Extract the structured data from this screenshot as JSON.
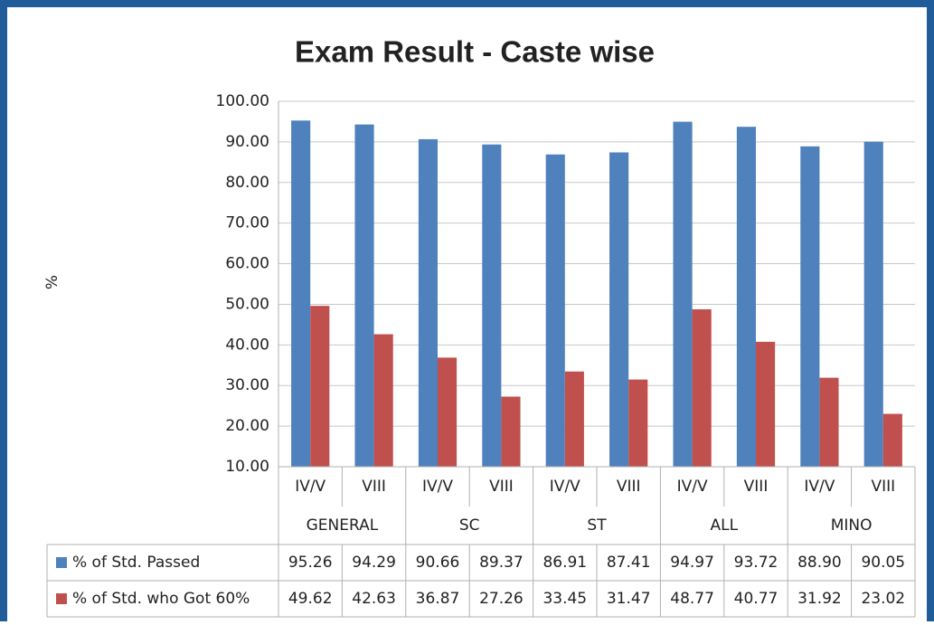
{
  "chart_data": {
    "type": "bar",
    "title": "Exam Result - Caste wise",
    "y_label": "%",
    "categories": [
      "IV/V",
      "VIII",
      "IV/V",
      "VIII",
      "IV/V",
      "VIII",
      "IV/V",
      "VIII",
      "IV/V",
      "VIII"
    ],
    "groups": [
      "GENERAL",
      "SC",
      "ST",
      "ALL",
      "MINO"
    ],
    "series": [
      {
        "name": "% of Std. Passed",
        "color": "#4f81bd",
        "values": [
          95.26,
          94.29,
          90.66,
          89.37,
          86.91,
          87.41,
          94.97,
          93.72,
          88.9,
          90.05
        ],
        "value_labels": [
          "95.26",
          "94.29",
          "90.66",
          "89.37",
          "86.91",
          "87.41",
          "94.97",
          "93.72",
          "88.90",
          "90.05"
        ]
      },
      {
        "name": "% of Std. who Got 60%",
        "color": "#c0504d",
        "values": [
          49.62,
          42.63,
          36.87,
          27.26,
          33.45,
          31.47,
          48.77,
          40.77,
          31.92,
          23.02
        ],
        "value_labels": [
          "49.62",
          "42.63",
          "36.87",
          "27.26",
          "33.45",
          "31.47",
          "48.77",
          "40.77",
          "31.92",
          "23.02"
        ]
      }
    ],
    "ylim": [
      10,
      100
    ],
    "yticks": [
      {
        "value": 10,
        "label": "10.00"
      },
      {
        "value": 20,
        "label": "20.00"
      },
      {
        "value": 30,
        "label": "30.00"
      },
      {
        "value": 40,
        "label": "40.00"
      },
      {
        "value": 50,
        "label": "50.00"
      },
      {
        "value": 60,
        "label": "60.00"
      },
      {
        "value": 70,
        "label": "70.00"
      },
      {
        "value": 80,
        "label": "80.00"
      },
      {
        "value": 90,
        "label": "90.00"
      },
      {
        "value": 100,
        "label": "100.00"
      }
    ],
    "grid": true
  }
}
